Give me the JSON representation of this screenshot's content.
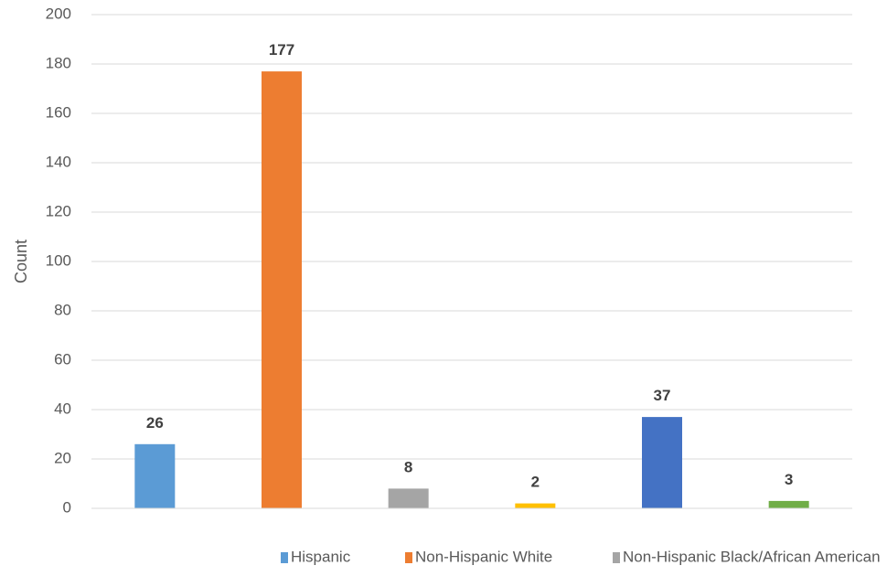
{
  "chart_data": {
    "type": "bar",
    "title": "",
    "xlabel": "",
    "ylabel": "Count",
    "ylim": [
      0,
      200
    ],
    "yticks": [
      0,
      20,
      40,
      60,
      80,
      100,
      120,
      140,
      160,
      180,
      200
    ],
    "grid": true,
    "legend_position": "bottom",
    "bars": [
      {
        "value": 26,
        "color": "#5b9bd5"
      },
      {
        "value": 177,
        "color": "#ed7d31"
      },
      {
        "value": 8,
        "color": "#a5a5a5"
      },
      {
        "value": 2,
        "color": "#ffc000"
      },
      {
        "value": 37,
        "color": "#4472c4"
      },
      {
        "value": 3,
        "color": "#70ad47"
      }
    ],
    "legend": [
      {
        "label": "Hispanic",
        "color": "#5b9bd5"
      },
      {
        "label": "Non-Hispanic White",
        "color": "#ed7d31"
      },
      {
        "label": "Non-Hispanic Black/African American",
        "color": "#a5a5a5"
      }
    ]
  }
}
